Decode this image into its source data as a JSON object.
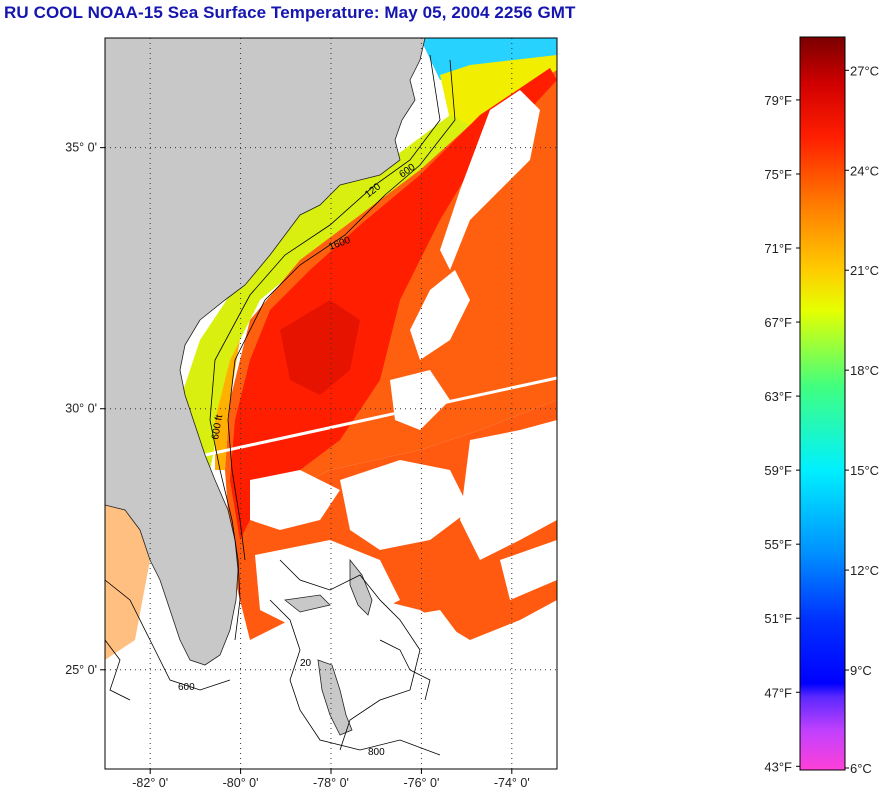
{
  "title": "RU COOL  NOAA-15  Sea Surface Temperature:  May 05, 2004 2256 GMT",
  "map": {
    "lon_range": [
      -83,
      -73
    ],
    "lat_range": [
      23.1,
      37.1
    ],
    "lat_ticks": [
      {
        "value": 35,
        "label": "35° 0'"
      },
      {
        "value": 30,
        "label": "30° 0'"
      },
      {
        "value": 25,
        "label": "25° 0'"
      }
    ],
    "lon_ticks": [
      {
        "value": -82,
        "label": "-82° 0'"
      },
      {
        "value": -80,
        "label": "-80° 0'"
      },
      {
        "value": -78,
        "label": "-78° 0'"
      },
      {
        "value": -76,
        "label": "-76° 0'"
      },
      {
        "value": -74,
        "label": "-74° 0'"
      }
    ],
    "grid": "dotted",
    "land_color": "#c8c8c8",
    "isobath_labels": [
      "120",
      "600",
      "1600",
      "20",
      "800",
      "120 ft",
      "600 ft",
      "20 ft",
      "800 ft"
    ]
  },
  "colorbar": {
    "celsius_range": [
      6,
      28
    ],
    "celsius_labels": [
      {
        "value": 27,
        "label": "27°C"
      },
      {
        "value": 24,
        "label": "24°C"
      },
      {
        "value": 21,
        "label": "21°C"
      },
      {
        "value": 18,
        "label": "18°C"
      },
      {
        "value": 15,
        "label": "15°C"
      },
      {
        "value": 12,
        "label": "12°C"
      },
      {
        "value": 9,
        "label": "9°C"
      },
      {
        "value": 6,
        "label": "6°C"
      }
    ],
    "fahrenheit_labels": [
      {
        "value": 79,
        "label": "79°F"
      },
      {
        "value": 75,
        "label": "75°F"
      },
      {
        "value": 71,
        "label": "71°F"
      },
      {
        "value": 67,
        "label": "67°F"
      },
      {
        "value": 63,
        "label": "63°F"
      },
      {
        "value": 59,
        "label": "59°F"
      },
      {
        "value": 55,
        "label": "55°F"
      },
      {
        "value": 51,
        "label": "51°F"
      },
      {
        "value": 47,
        "label": "47°F"
      },
      {
        "value": 43,
        "label": "43°F"
      }
    ],
    "gradient_stops": [
      {
        "c": 6,
        "color": "#ff40d8"
      },
      {
        "c": 7.2,
        "color": "#c040ff"
      },
      {
        "c": 8.2,
        "color": "#5a28ff"
      },
      {
        "c": 8.6,
        "color": "#0000ff"
      },
      {
        "c": 10.5,
        "color": "#0030ff"
      },
      {
        "c": 12.5,
        "color": "#0090ff"
      },
      {
        "c": 15,
        "color": "#00f0ff"
      },
      {
        "c": 17.5,
        "color": "#40ff80"
      },
      {
        "c": 19.8,
        "color": "#e6ff00"
      },
      {
        "c": 21,
        "color": "#ffcc00"
      },
      {
        "c": 23,
        "color": "#ff7a00"
      },
      {
        "c": 25,
        "color": "#ff1e00"
      },
      {
        "c": 26.6,
        "color": "#d00000"
      },
      {
        "c": 28,
        "color": "#7a0000"
      }
    ]
  }
}
